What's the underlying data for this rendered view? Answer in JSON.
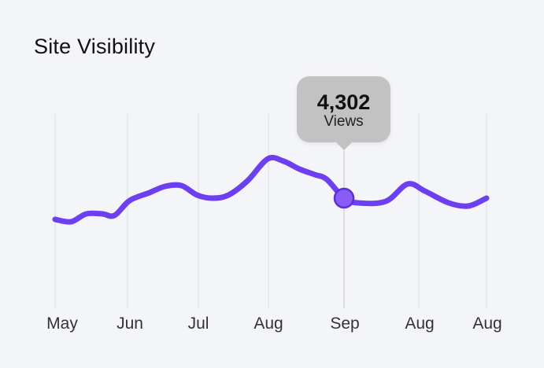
{
  "chart_data": {
    "type": "line",
    "title": "Site Visibility",
    "categories": [
      "May",
      "Jun",
      "Jul",
      "Aug",
      "Sep",
      "Aug",
      "Aug"
    ],
    "x": [
      0,
      0.22,
      0.43,
      0.65,
      0.82,
      1.03,
      1.31,
      1.53,
      1.76,
      1.98,
      2.2,
      2.43,
      2.7,
      2.99,
      3.2,
      3.41,
      3.61,
      3.77,
      4.0,
      4.19,
      4.56,
      4.85,
      5.09,
      5.44,
      5.73,
      6.0
    ],
    "values": [
      3489,
      3399,
      3700,
      3700,
      3640,
      4211,
      4512,
      4753,
      4783,
      4422,
      4302,
      4422,
      4963,
      5805,
      5715,
      5414,
      5204,
      5023,
      4302,
      4121,
      4181,
      4843,
      4572,
      4121,
      4001,
      4302
    ],
    "grid": "vertical",
    "line_color": "#6c3ff0",
    "highlight": {
      "category": "Sep",
      "value": "4,302",
      "label": "Views",
      "x": 4.0,
      "y": 4302,
      "color": "#8a5cf7"
    }
  }
}
